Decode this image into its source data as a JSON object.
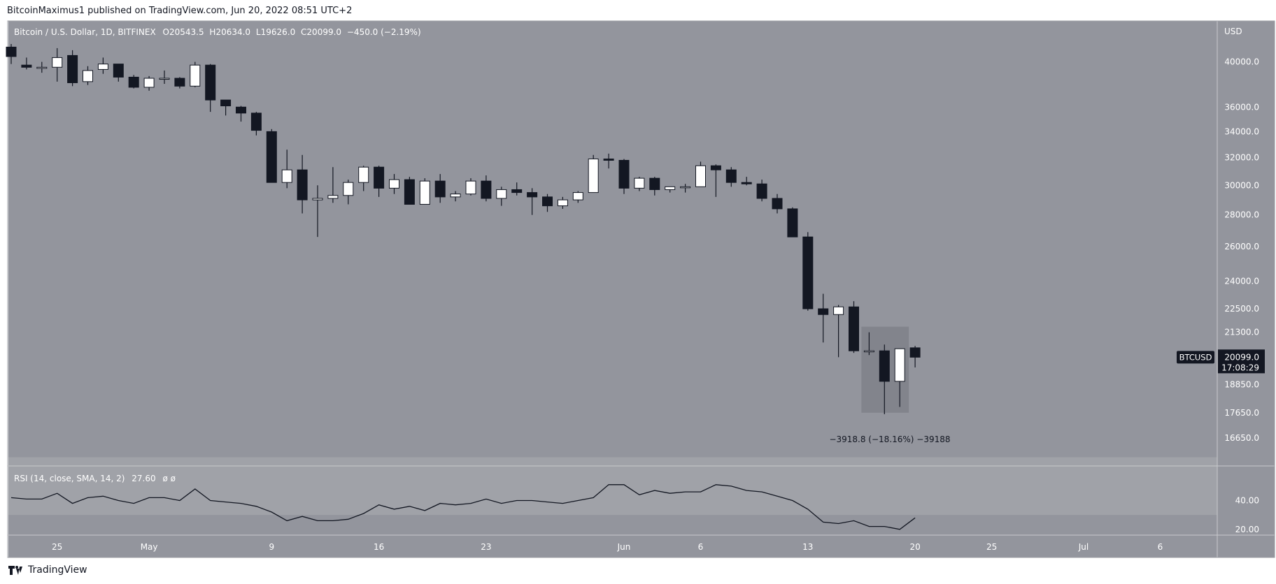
{
  "header": {
    "text": "BitcoinMaximus1 published on TradingView.com, Jun 20, 2022 08:51 UTC+2"
  },
  "legend": {
    "symbol": "Bitcoin / U.S. Dollar, 1D, BITFINEX",
    "o_label": "O",
    "o_value": "20543.5",
    "h_label": "H",
    "h_value": "20634.0",
    "l_label": "L",
    "l_value": "19626.0",
    "c_label": "C",
    "c_value": "20099.0",
    "change": "−450.0 (−2.19%)"
  },
  "price_axis": {
    "currency": "USD"
  },
  "last_price": {
    "ticker": "BTCUSD",
    "price": "20099.0",
    "countdown": "17:08:29"
  },
  "measure": {
    "text": "−3918.8 (−18.16%) −39188"
  },
  "rsi_legend": {
    "label": "RSI (14, close, SMA, 14, 2)",
    "value": "27.60",
    "extra": "ø  ø"
  },
  "footer": {
    "brand": "TradingView"
  },
  "colors": {
    "background": "#93959d",
    "rsi_band": "#a0a2a8",
    "bull_body": "#ffffff",
    "bear_body": "#131722",
    "wick": "#131722",
    "rsi_line": "#131722",
    "axis_text": "#ffffff",
    "label_bg": "#131722"
  },
  "chart_data": {
    "type": "candlestick",
    "scale": "log",
    "ylim": [
      15600,
      44000
    ],
    "yticks": [
      40000,
      36000,
      34000,
      32000,
      30000,
      28000,
      26000,
      24000,
      22500,
      21300,
      18850,
      17650,
      16650
    ],
    "ytick_labels": [
      "40000.0",
      "36000.0",
      "34000.0",
      "32000.0",
      "30000.0",
      "28000.0",
      "26000.0",
      "24000.0",
      "22500.0",
      "21300.0",
      "18850.0",
      "17650.0",
      "16650.0"
    ],
    "xticks": [
      {
        "date": "2022-04-25",
        "label": "25"
      },
      {
        "date": "2022-05-01",
        "label": "May"
      },
      {
        "date": "2022-05-09",
        "label": "9"
      },
      {
        "date": "2022-05-16",
        "label": "16"
      },
      {
        "date": "2022-05-23",
        "label": "23"
      },
      {
        "date": "2022-06-01",
        "label": "Jun"
      },
      {
        "date": "2022-06-06",
        "label": "6"
      },
      {
        "date": "2022-06-13",
        "label": "13"
      },
      {
        "date": "2022-06-20",
        "label": "20"
      },
      {
        "date": "2022-06-25",
        "label": "25"
      },
      {
        "date": "2022-07-01",
        "label": "Jul"
      },
      {
        "date": "2022-07-06",
        "label": "6"
      }
    ],
    "candles": [
      {
        "date": "2022-04-22",
        "o": 41400,
        "h": 41700,
        "l": 39800,
        "c": 40500
      },
      {
        "date": "2022-04-23",
        "o": 39700,
        "h": 40400,
        "l": 39300,
        "c": 39500
      },
      {
        "date": "2022-04-24",
        "o": 39400,
        "h": 40000,
        "l": 39000,
        "c": 39500
      },
      {
        "date": "2022-04-25",
        "o": 39500,
        "h": 41300,
        "l": 38200,
        "c": 40400
      },
      {
        "date": "2022-04-26",
        "o": 40600,
        "h": 41100,
        "l": 37800,
        "c": 38100
      },
      {
        "date": "2022-04-27",
        "o": 38200,
        "h": 39600,
        "l": 37900,
        "c": 39200
      },
      {
        "date": "2022-04-28",
        "o": 39300,
        "h": 40400,
        "l": 38900,
        "c": 39800
      },
      {
        "date": "2022-04-29",
        "o": 39800,
        "h": 39800,
        "l": 38200,
        "c": 38600
      },
      {
        "date": "2022-04-30",
        "o": 38600,
        "h": 38800,
        "l": 37600,
        "c": 37700
      },
      {
        "date": "2022-05-01",
        "o": 37700,
        "h": 38700,
        "l": 37400,
        "c": 38500
      },
      {
        "date": "2022-05-02",
        "o": 38500,
        "h": 39200,
        "l": 38000,
        "c": 38500
      },
      {
        "date": "2022-05-03",
        "o": 38500,
        "h": 38600,
        "l": 37600,
        "c": 37800
      },
      {
        "date": "2022-05-04",
        "o": 37800,
        "h": 40000,
        "l": 37700,
        "c": 39700
      },
      {
        "date": "2022-05-05",
        "o": 39700,
        "h": 39800,
        "l": 35600,
        "c": 36600
      },
      {
        "date": "2022-05-06",
        "o": 36600,
        "h": 36600,
        "l": 35300,
        "c": 36100
      },
      {
        "date": "2022-05-07",
        "o": 36000,
        "h": 36100,
        "l": 34800,
        "c": 35500
      },
      {
        "date": "2022-05-08",
        "o": 35500,
        "h": 35600,
        "l": 33700,
        "c": 34100
      },
      {
        "date": "2022-05-09",
        "o": 34000,
        "h": 34200,
        "l": 30200,
        "c": 30200
      },
      {
        "date": "2022-05-10",
        "o": 30200,
        "h": 32600,
        "l": 29800,
        "c": 31100
      },
      {
        "date": "2022-05-11",
        "o": 31100,
        "h": 32200,
        "l": 28100,
        "c": 29000
      },
      {
        "date": "2022-05-12",
        "o": 29000,
        "h": 30000,
        "l": 26600,
        "c": 29100
      },
      {
        "date": "2022-05-13",
        "o": 29100,
        "h": 31300,
        "l": 28800,
        "c": 29300
      },
      {
        "date": "2022-05-14",
        "o": 29300,
        "h": 30400,
        "l": 28700,
        "c": 30200
      },
      {
        "date": "2022-05-15",
        "o": 30200,
        "h": 31400,
        "l": 29600,
        "c": 31300
      },
      {
        "date": "2022-05-16",
        "o": 31300,
        "h": 31400,
        "l": 29200,
        "c": 29800
      },
      {
        "date": "2022-05-17",
        "o": 29800,
        "h": 30800,
        "l": 29400,
        "c": 30400
      },
      {
        "date": "2022-05-18",
        "o": 30400,
        "h": 30600,
        "l": 28700,
        "c": 28700
      },
      {
        "date": "2022-05-19",
        "o": 28700,
        "h": 30500,
        "l": 28700,
        "c": 30300
      },
      {
        "date": "2022-05-20",
        "o": 30300,
        "h": 30800,
        "l": 28800,
        "c": 29200
      },
      {
        "date": "2022-05-21",
        "o": 29200,
        "h": 29600,
        "l": 28900,
        "c": 29400
      },
      {
        "date": "2022-05-22",
        "o": 29400,
        "h": 30500,
        "l": 29300,
        "c": 30300
      },
      {
        "date": "2022-05-23",
        "o": 30300,
        "h": 30700,
        "l": 28900,
        "c": 29100
      },
      {
        "date": "2022-05-24",
        "o": 29100,
        "h": 29900,
        "l": 28600,
        "c": 29700
      },
      {
        "date": "2022-05-25",
        "o": 29700,
        "h": 30200,
        "l": 29300,
        "c": 29500
      },
      {
        "date": "2022-05-26",
        "o": 29500,
        "h": 29800,
        "l": 28000,
        "c": 29200
      },
      {
        "date": "2022-05-27",
        "o": 29200,
        "h": 29400,
        "l": 28200,
        "c": 28600
      },
      {
        "date": "2022-05-28",
        "o": 28600,
        "h": 29200,
        "l": 28400,
        "c": 29000
      },
      {
        "date": "2022-05-29",
        "o": 29000,
        "h": 29600,
        "l": 28800,
        "c": 29500
      },
      {
        "date": "2022-05-30",
        "o": 29500,
        "h": 32200,
        "l": 29500,
        "c": 31900
      },
      {
        "date": "2022-05-31",
        "o": 31900,
        "h": 32300,
        "l": 31200,
        "c": 31800
      },
      {
        "date": "2022-06-01",
        "o": 31800,
        "h": 31900,
        "l": 29400,
        "c": 29800
      },
      {
        "date": "2022-06-02",
        "o": 29800,
        "h": 30600,
        "l": 29600,
        "c": 30500
      },
      {
        "date": "2022-06-03",
        "o": 30500,
        "h": 30600,
        "l": 29300,
        "c": 29700
      },
      {
        "date": "2022-06-04",
        "o": 29700,
        "h": 29900,
        "l": 29500,
        "c": 29900
      },
      {
        "date": "2022-06-05",
        "o": 29900,
        "h": 30100,
        "l": 29500,
        "c": 29900
      },
      {
        "date": "2022-06-06",
        "o": 29900,
        "h": 31700,
        "l": 29900,
        "c": 31400
      },
      {
        "date": "2022-06-07",
        "o": 31400,
        "h": 31500,
        "l": 29200,
        "c": 31100
      },
      {
        "date": "2022-06-08",
        "o": 31100,
        "h": 31300,
        "l": 29900,
        "c": 30200
      },
      {
        "date": "2022-06-09",
        "o": 30200,
        "h": 30600,
        "l": 30000,
        "c": 30100
      },
      {
        "date": "2022-06-10",
        "o": 30100,
        "h": 30400,
        "l": 28900,
        "c": 29100
      },
      {
        "date": "2022-06-11",
        "o": 29100,
        "h": 29400,
        "l": 28100,
        "c": 28400
      },
      {
        "date": "2022-06-12",
        "o": 28400,
        "h": 28500,
        "l": 26600,
        "c": 26600
      },
      {
        "date": "2022-06-13",
        "o": 26600,
        "h": 26900,
        "l": 22400,
        "c": 22500
      },
      {
        "date": "2022-06-14",
        "o": 22500,
        "h": 23300,
        "l": 20800,
        "c": 22200
      },
      {
        "date": "2022-06-15",
        "o": 22200,
        "h": 22700,
        "l": 20100,
        "c": 22600
      },
      {
        "date": "2022-06-16",
        "o": 22600,
        "h": 22900,
        "l": 20300,
        "c": 20400
      },
      {
        "date": "2022-06-17",
        "o": 20400,
        "h": 21300,
        "l": 20200,
        "c": 20400
      },
      {
        "date": "2022-06-18",
        "o": 20400,
        "h": 20700,
        "l": 17600,
        "c": 19000
      },
      {
        "date": "2022-06-19",
        "o": 19000,
        "h": 20500,
        "l": 17900,
        "c": 20500
      },
      {
        "date": "2022-06-20",
        "o": 20543.5,
        "h": 20634.0,
        "l": 19626.0,
        "c": 20099.0
      }
    ],
    "measure_range": {
      "from_date": "2022-06-17",
      "to_date": "2022-06-19",
      "high": 21580,
      "low": 17660
    },
    "rsi": {
      "ylim": [
        16,
        64
      ],
      "band": [
        30,
        70
      ],
      "yticks": [
        40,
        20
      ],
      "ytick_labels": [
        "40.00",
        "20.00"
      ],
      "values": [
        42,
        41,
        41,
        45,
        38,
        42,
        43,
        40,
        38,
        42,
        42,
        40,
        48,
        40,
        39,
        38,
        36,
        32,
        26,
        29,
        26,
        26,
        27,
        31,
        37,
        34,
        36,
        33,
        38,
        37,
        38,
        41,
        38,
        40,
        40,
        39,
        38,
        40,
        42,
        51,
        51,
        44,
        47,
        45,
        46,
        46,
        51,
        50,
        47,
        46,
        43,
        40,
        34,
        25,
        24,
        26,
        22,
        22,
        20,
        28
      ]
    }
  }
}
